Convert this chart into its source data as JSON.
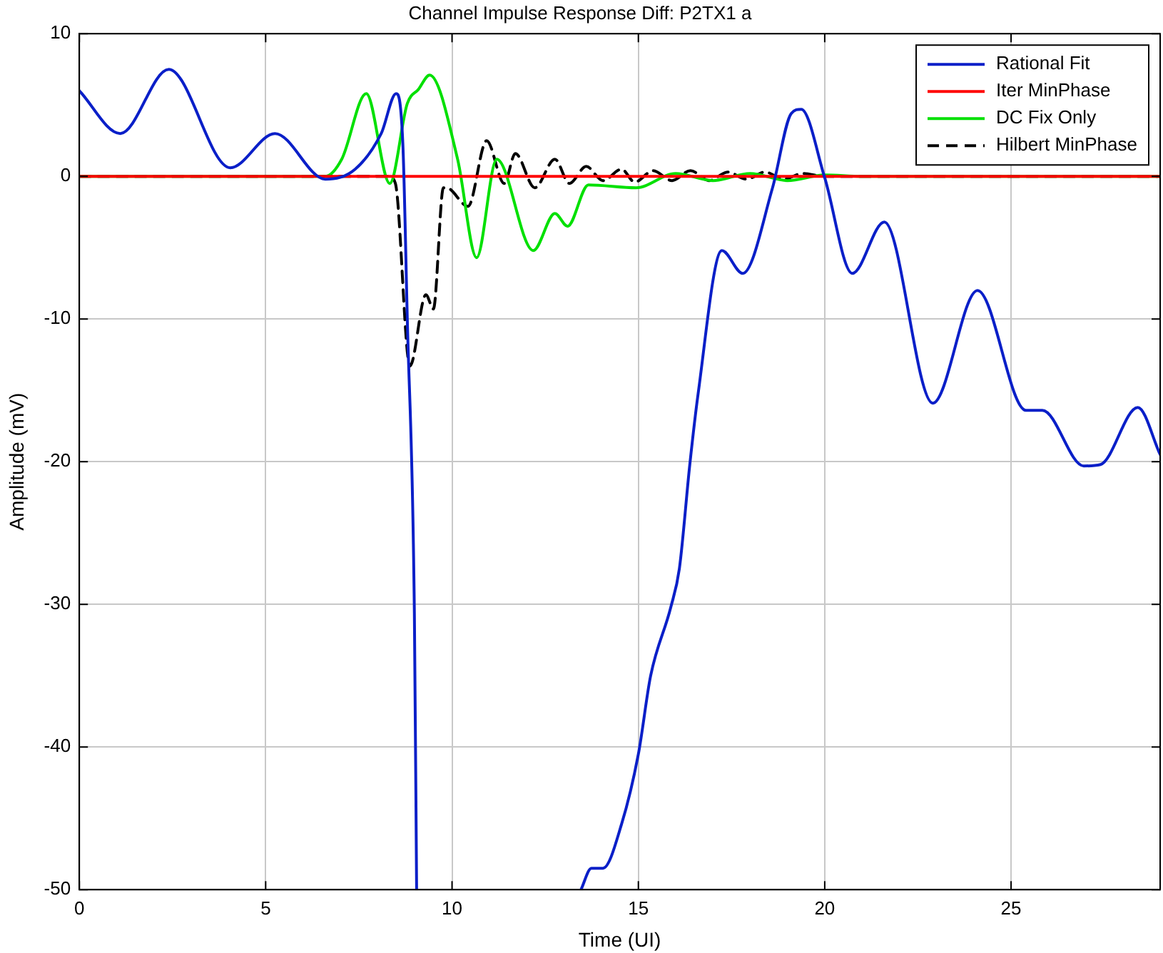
{
  "chart_data": {
    "type": "line",
    "title": "Channel Impulse Response Diff: P2TX1 a",
    "xlabel": "Time (UI)",
    "ylabel": "Amplitude (mV)",
    "xlim": [
      0,
      29
    ],
    "xticks": [
      0,
      5,
      10,
      15,
      20,
      25
    ],
    "ylim": [
      -50,
      10
    ],
    "yticks": [
      -50,
      -40,
      -30,
      -20,
      -10,
      0,
      10
    ],
    "grid": true,
    "legend": "top right",
    "marker": "none",
    "series": [
      {
        "name": "Rational Fit",
        "color": "#0a1fc8",
        "line_style": "solid",
        "x": [
          0,
          1.1,
          2.4,
          4.05,
          5.25,
          6.6,
          7.4,
          8.1,
          8.5,
          8.68,
          8.8,
          8.99,
          9.05,
          11,
          13.46,
          13.74,
          14.05,
          14.55,
          15.0,
          15.33,
          15.87,
          16.1,
          16.38,
          16.6,
          17.24,
          17.8,
          18.6,
          19.1,
          19.37,
          20.0,
          20.74,
          21.6,
          22.9,
          24.1,
          25.4,
          25.84,
          26.95,
          27.4,
          28.4,
          29.0
        ],
        "values": [
          6.0,
          3.0,
          7.5,
          0.6,
          3.0,
          -0.2,
          0.5,
          3.0,
          5.8,
          2.3,
          -10,
          -30.6,
          -50,
          null,
          -50,
          -48.5,
          -48.5,
          -45.4,
          -40.5,
          -35,
          -30.2,
          -27.5,
          -20.2,
          -15.3,
          -5.2,
          -6.8,
          -0.8,
          4.4,
          4.7,
          -0.1,
          -6.8,
          -3.2,
          -15.9,
          -8.0,
          -16.4,
          -16.4,
          -20.3,
          -20.2,
          -16.2,
          -19.5
        ]
      },
      {
        "name": "Iter MinPhase",
        "color": "#ff0000",
        "line_style": "solid",
        "x": [
          0,
          29
        ],
        "values": [
          0,
          0
        ]
      },
      {
        "name": "DC Fix Only",
        "color": "#00e000",
        "line_style": "solid",
        "x": [
          0,
          6.6,
          7.04,
          7.7,
          8.33,
          8.8,
          9.1,
          9.4,
          10.15,
          10.66,
          11.2,
          12.18,
          12.76,
          13.1,
          13.66,
          14.94,
          16,
          17,
          18,
          19,
          20,
          21,
          29
        ],
        "values": [
          0,
          0,
          1.2,
          5.8,
          -0.5,
          5.1,
          6.1,
          7.1,
          1.2,
          -5.7,
          1.2,
          -5.2,
          -2.6,
          -3.5,
          -0.6,
          -0.8,
          0.2,
          -0.3,
          0.2,
          -0.3,
          0.1,
          0,
          0
        ]
      },
      {
        "name": "Hilbert MinPhase",
        "color": "#000000",
        "line_style": "dashed",
        "x": [
          0,
          8.3,
          8.48,
          8.87,
          9.3,
          9.5,
          9.77,
          9.85,
          10.43,
          10.93,
          11.4,
          11.7,
          12.22,
          12.76,
          13.15,
          13.6,
          14.05,
          14.55,
          14.9,
          15.4,
          15.9,
          16.4,
          16.9,
          17.4,
          17.9,
          18.4,
          18.9,
          19.4,
          20,
          29
        ],
        "values": [
          0,
          0,
          -0.5,
          -13.3,
          -8.3,
          -9.3,
          -0.8,
          -0.8,
          -2.1,
          2.5,
          -0.5,
          1.6,
          -0.8,
          1.2,
          -0.5,
          0.7,
          -0.3,
          0.5,
          -0.4,
          0.4,
          -0.3,
          0.4,
          -0.3,
          0.3,
          -0.2,
          0.3,
          -0.2,
          0.2,
          0,
          0
        ]
      }
    ]
  }
}
